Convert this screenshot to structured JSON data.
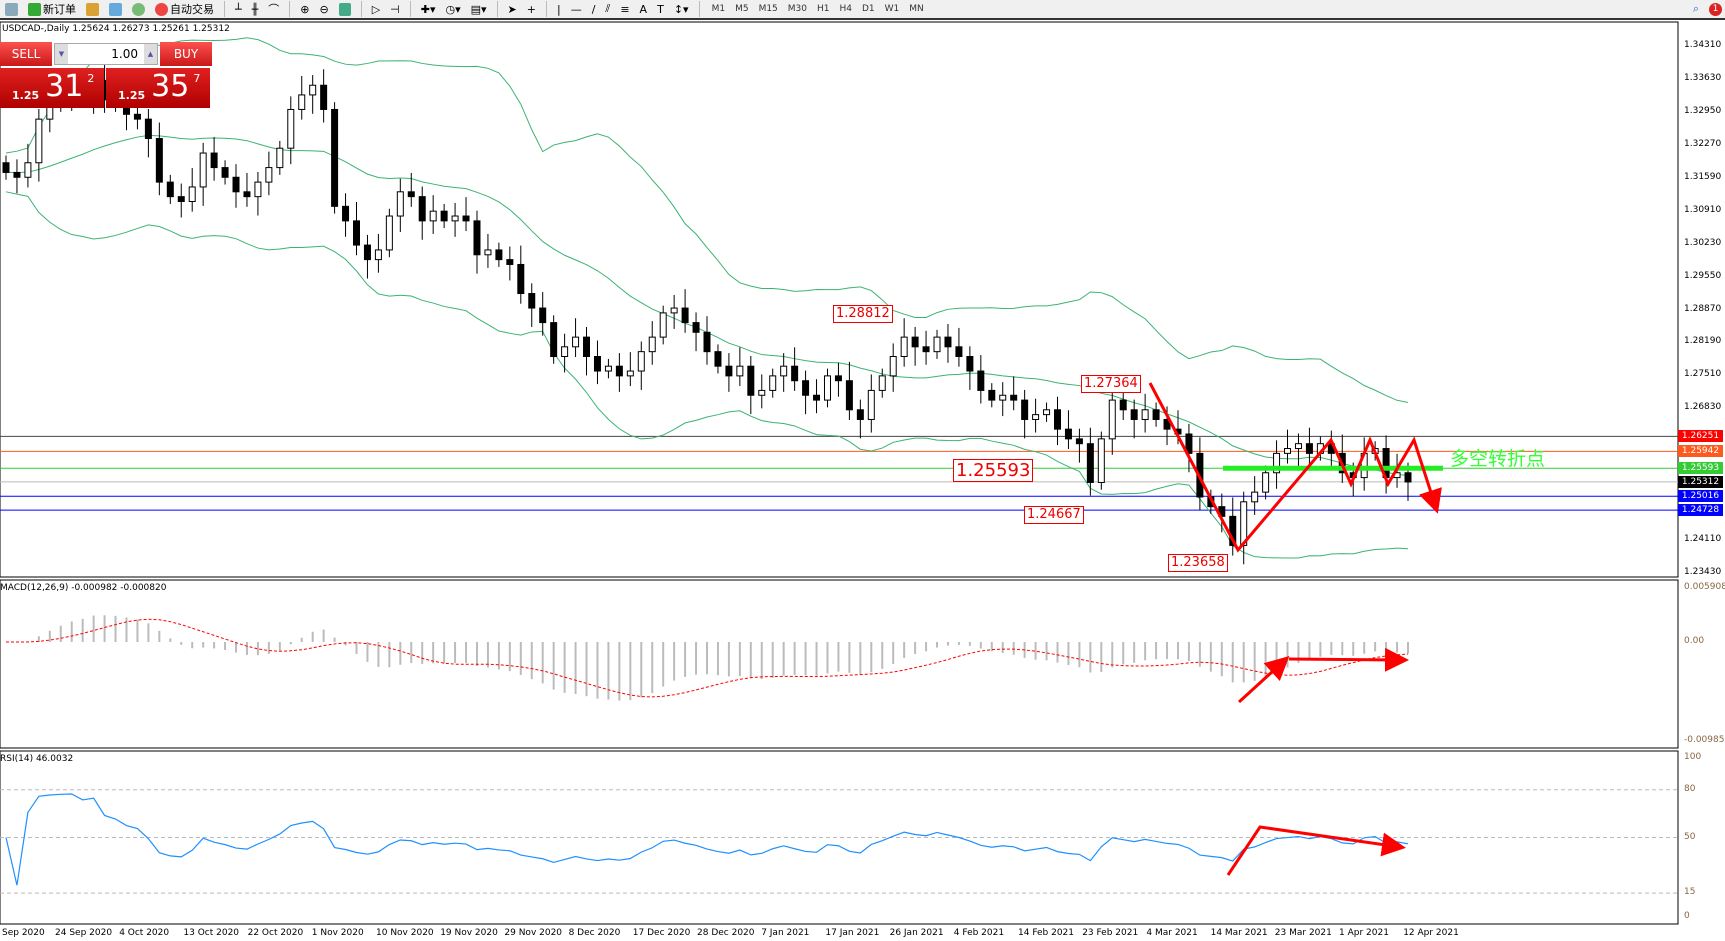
{
  "toolbar": {
    "new_order": "新订单",
    "auto_trade": "自动交易",
    "timeframes": [
      "M1",
      "M5",
      "M15",
      "M30",
      "H1",
      "H4",
      "D1",
      "W1",
      "MN"
    ],
    "notification_count": "1"
  },
  "chart_title": "USDCAD-,Daily  1.25624 1.26273 1.25261 1.25312",
  "trade_panel": {
    "sell_label": "SELL",
    "buy_label": "BUY",
    "lot": "1.00",
    "sell_small": "1.25",
    "sell_big": "31",
    "sell_pip": "2",
    "buy_small": "1.25",
    "buy_big": "35",
    "buy_pip": "7"
  },
  "price_axis": [
    "1.34310",
    "1.33630",
    "1.32950",
    "1.32270",
    "1.31590",
    "1.30910",
    "1.30230",
    "1.29550",
    "1.28870",
    "1.28190",
    "1.27510",
    "1.26830",
    "1.24110",
    "1.23430"
  ],
  "level_tags": [
    {
      "value": "1.26251",
      "color": "#ff0000"
    },
    {
      "value": "1.25942",
      "color": "#ff5a1e"
    },
    {
      "value": "1.25593",
      "color": "#33cc33"
    },
    {
      "value": "1.25312",
      "color": "#000000"
    },
    {
      "value": "1.25016",
      "color": "#0000ff"
    },
    {
      "value": "1.24728",
      "color": "#0000ff"
    }
  ],
  "annotations": {
    "label_1": "1.28812",
    "label_2": "1.27364",
    "label_3": "1.25593",
    "label_4": "1.24667",
    "label_5": "1.23658",
    "turning_point": "多空转折点"
  },
  "macd": {
    "title": "MACD(12,26,9) -0.000982 -0.000820",
    "axis": [
      "0.005908",
      "0.00",
      "-0.009851"
    ]
  },
  "rsi": {
    "title": "RSI(14) 46.0032",
    "axis": [
      "100",
      "80",
      "50",
      "15",
      "0"
    ]
  },
  "dates": [
    "Sep 2020",
    "24 Sep 2020",
    "4 Oct 2020",
    "13 Oct 2020",
    "22 Oct 2020",
    "1 Nov 2020",
    "10 Nov 2020",
    "19 Nov 2020",
    "29 Nov 2020",
    "8 Dec 2020",
    "17 Dec 2020",
    "28 Dec 2020",
    "7 Jan 2021",
    "17 Jan 2021",
    "26 Jan 2021",
    "4 Feb 2021",
    "14 Feb 2021",
    "23 Feb 2021",
    "4 Mar 2021",
    "14 Mar 2021",
    "23 Mar 2021",
    "1 Apr 2021",
    "12 Apr 2021"
  ],
  "chart_data": {
    "type": "candlestick",
    "symbol": "USDCAD",
    "ylim": [
      1.2343,
      1.3431
    ],
    "colors": {
      "bands": "#3cb371",
      "macd_signal": "#ff0000",
      "rsi": "#1e90ff",
      "annotation": "#ff0000"
    },
    "closes": [
      1.317,
      1.316,
      1.319,
      1.328,
      1.331,
      1.333,
      1.334,
      1.333,
      1.336,
      1.332,
      1.331,
      1.329,
      1.328,
      1.324,
      1.315,
      1.312,
      1.311,
      1.314,
      1.321,
      1.318,
      1.316,
      1.313,
      1.312,
      1.315,
      1.318,
      1.322,
      1.33,
      1.333,
      1.335,
      1.33,
      1.31,
      1.307,
      1.302,
      1.299,
      1.301,
      1.308,
      1.313,
      1.312,
      1.307,
      1.309,
      1.307,
      1.308,
      1.307,
      1.3,
      1.301,
      1.299,
      1.298,
      1.292,
      1.289,
      1.286,
      1.279,
      1.281,
      1.283,
      1.279,
      1.276,
      1.277,
      1.275,
      1.276,
      1.28,
      1.283,
      1.288,
      1.289,
      1.286,
      1.284,
      1.28,
      1.277,
      1.275,
      1.277,
      1.271,
      1.272,
      1.275,
      1.277,
      1.274,
      1.271,
      1.27,
      1.275,
      1.274,
      1.268,
      1.266,
      1.272,
      1.275,
      1.279,
      1.283,
      1.281,
      1.28,
      1.283,
      1.281,
      1.279,
      1.276,
      1.272,
      1.27,
      1.271,
      1.27,
      1.266,
      1.267,
      1.268,
      1.264,
      1.262,
      1.261,
      1.253,
      1.262,
      1.27,
      1.268,
      1.266,
      1.268,
      1.266,
      1.264,
      1.263,
      1.259,
      1.25,
      1.248,
      1.246,
      1.24,
      1.249,
      1.251,
      1.255,
      1.259,
      1.26,
      1.261,
      1.259,
      1.261,
      1.259,
      1.255,
      1.254,
      1.259,
      1.26,
      1.254,
      1.255,
      1.2531
    ]
  }
}
